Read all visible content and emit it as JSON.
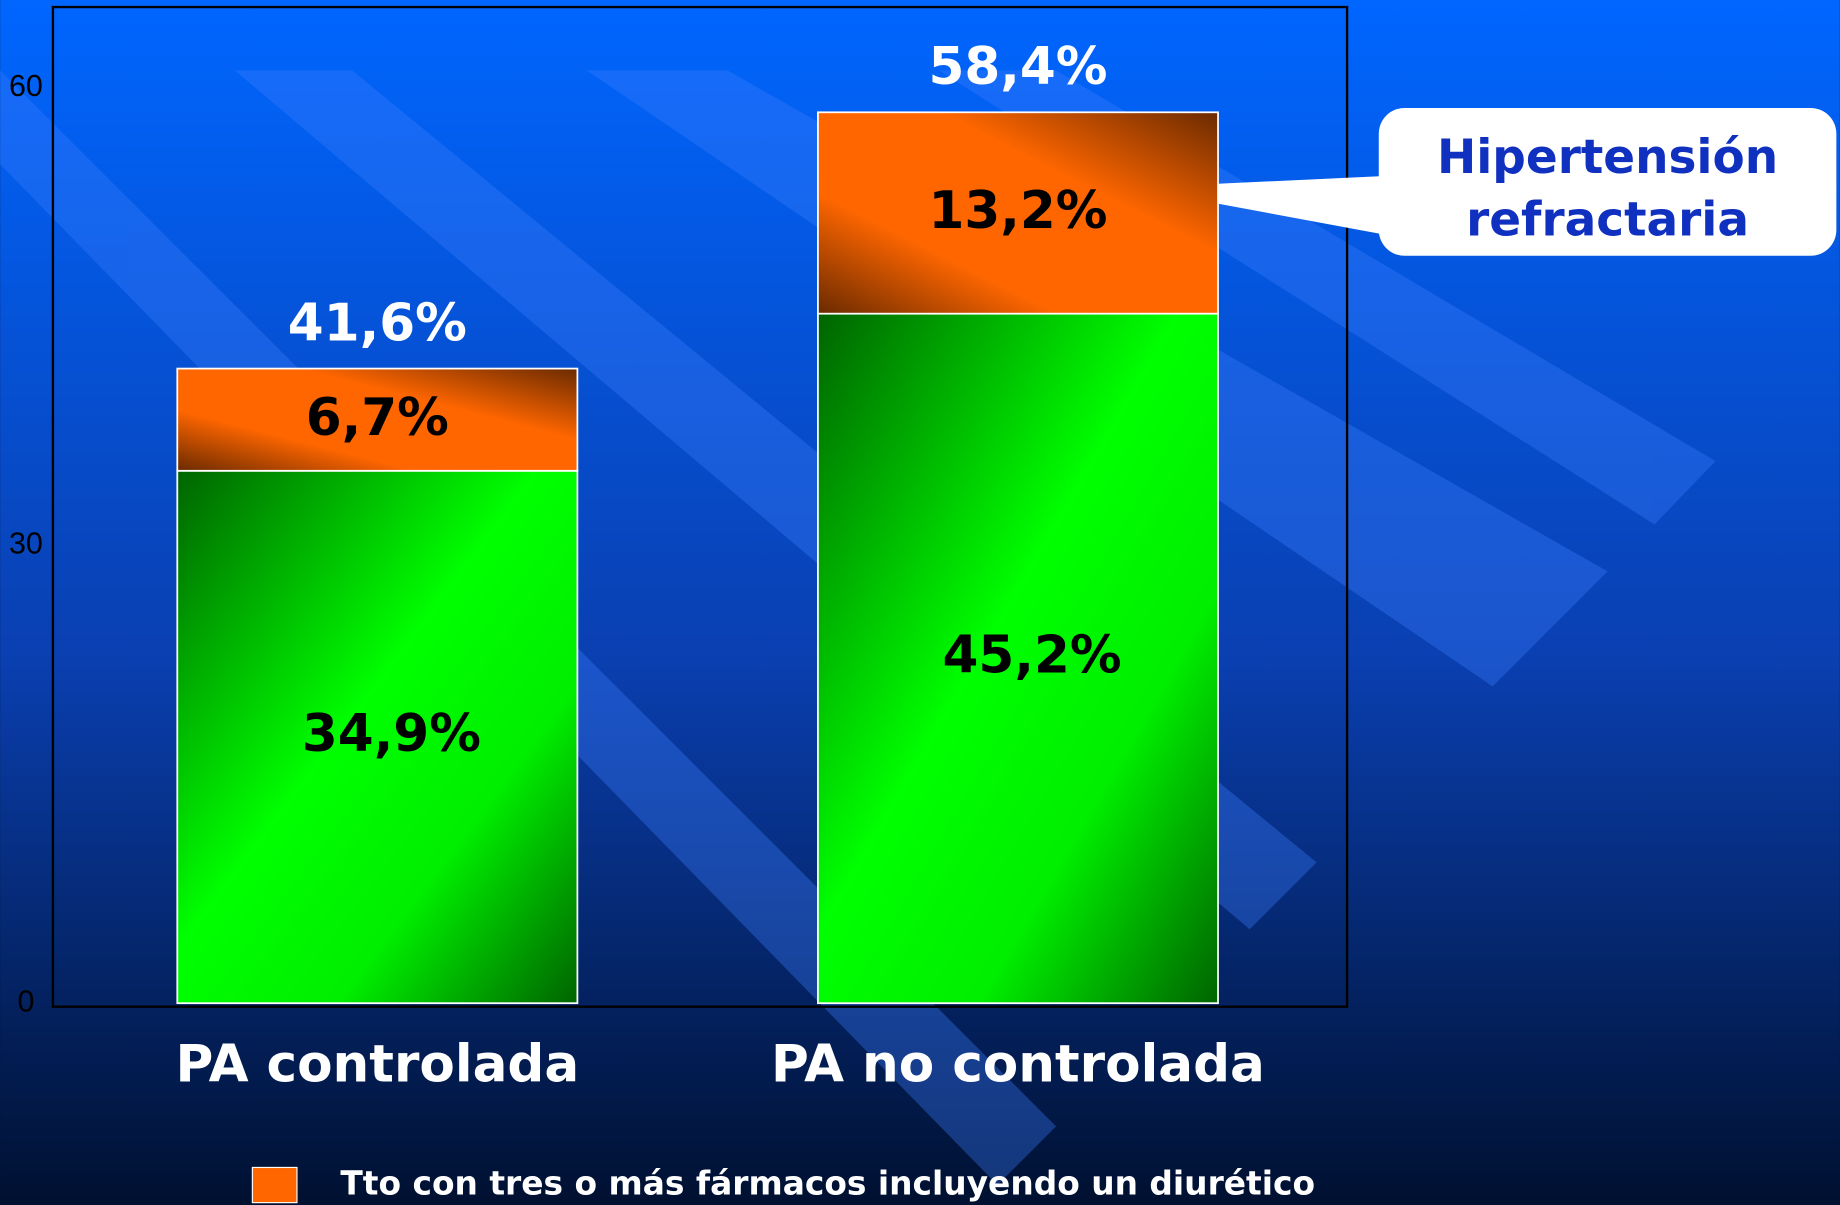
{
  "chart_data": {
    "type": "stacked-bar",
    "categories": [
      "PA controlada",
      "PA no controlada"
    ],
    "series": [
      {
        "color": "#00ff00",
        "values": [
          34.9,
          45.2
        ],
        "value_labels": [
          "34,9%",
          "45,2%"
        ]
      },
      {
        "name": "Tto con tres o más fármacos incluyendo un diurético",
        "color": "#ff6600",
        "values": [
          6.7,
          13.2
        ],
        "value_labels": [
          "6,7%",
          "13,2%"
        ]
      }
    ],
    "totals": [
      41.6,
      58.4
    ],
    "total_labels": [
      "41,6%",
      "58,4%"
    ],
    "annotation": {
      "lines": [
        "Hipertensión",
        "refractaria"
      ],
      "category": 1,
      "series": 1
    },
    "ylim": [
      0,
      65.3
    ],
    "yticks": [
      0,
      30,
      60
    ]
  }
}
